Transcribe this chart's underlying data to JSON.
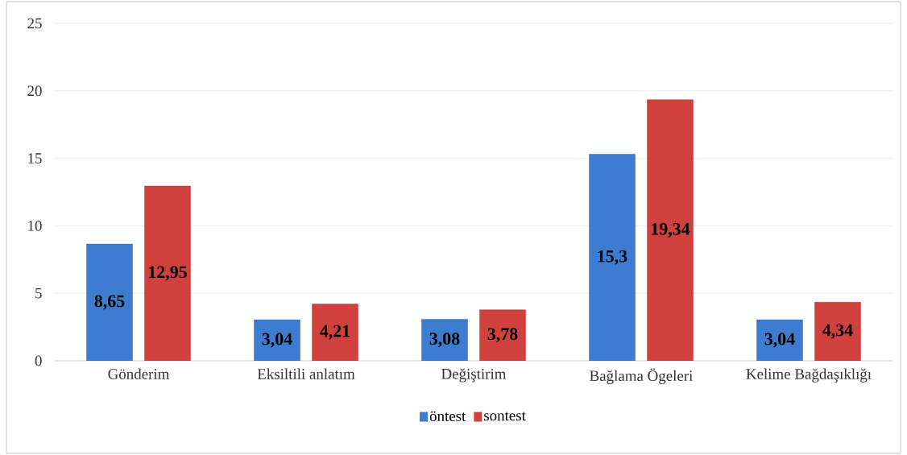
{
  "chart_data": {
    "type": "bar",
    "categories": [
      "Gönderim",
      "Eksiltili anlatım",
      "Değiştirim",
      "Bağlama Ögeleri",
      "Kelime Bağdaşıklığı"
    ],
    "series": [
      {
        "name": "öntest",
        "color": "#3d7dcf",
        "values": [
          8.65,
          3.04,
          3.08,
          15.3,
          3.04
        ],
        "value_labels": [
          "8,65",
          "3,04",
          "3,08",
          "15,3",
          "3,04"
        ]
      },
      {
        "name": "sontest",
        "color": "#d0413e",
        "values": [
          12.95,
          4.21,
          3.78,
          19.34,
          4.34
        ],
        "value_labels": [
          "12,95",
          "4,21",
          "3,78",
          "19,34",
          "4,34"
        ]
      }
    ],
    "ylim": [
      0,
      25
    ],
    "yticks": [
      0,
      5,
      10,
      15,
      20,
      25
    ],
    "grid": "y",
    "legend": "bottom"
  }
}
